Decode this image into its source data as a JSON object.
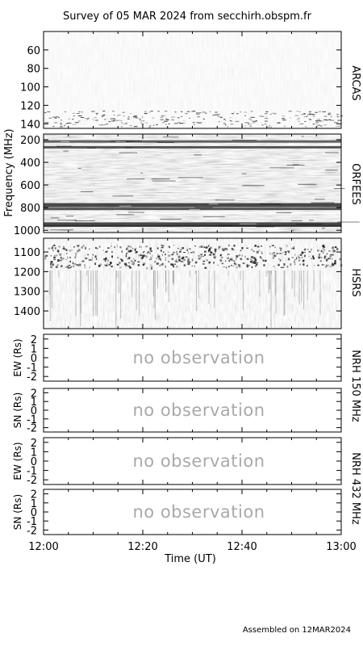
{
  "title": "Survey of 05 MAR 2024 from secchirh.obspm.fr",
  "footer": "Assembled on 12MAR2024",
  "colors": {
    "frame": "#000000",
    "no_observation_text": "#a9a9a9"
  },
  "chart_data": [
    {
      "type": "heatmap",
      "instrument": "ARCAS",
      "ylabel": "",
      "ylim": [
        40,
        145
      ],
      "yticks": [
        "60",
        "80",
        "100",
        "120",
        "140"
      ],
      "ytick_values": [
        60,
        80,
        100,
        120,
        140
      ]
    },
    {
      "type": "heatmap",
      "instrument": "ORFEES",
      "ylabel": "Frequency (MHz)",
      "ylim": [
        150,
        1020
      ],
      "yticks": [
        "200",
        "400",
        "600",
        "800",
        "1000"
      ],
      "ytick_values": [
        200,
        400,
        600,
        800,
        1000
      ]
    },
    {
      "type": "heatmap",
      "instrument": "HSRS",
      "ylabel": "",
      "ylim": [
        1030,
        1490
      ],
      "yticks": [
        "1100",
        "1200",
        "1300",
        "1400"
      ],
      "ytick_values": [
        1100,
        1200,
        1300,
        1400
      ]
    },
    {
      "type": "line",
      "instrument": "NRH 150 MHz",
      "ylabel": "EW (Rs)",
      "ylim": [
        -2.5,
        2.5
      ],
      "yticks": [
        "2",
        "1",
        "0",
        "-1",
        "-2"
      ],
      "ytick_values": [
        2,
        1,
        0,
        -1,
        -2
      ],
      "note": "no observation"
    },
    {
      "type": "line",
      "instrument": "NRH 150 MHz",
      "ylabel": "SN (Rs)",
      "ylim": [
        -2.5,
        2.5
      ],
      "yticks": [
        "2",
        "1",
        "0",
        "-1",
        "-2"
      ],
      "ytick_values": [
        2,
        1,
        0,
        -1,
        -2
      ],
      "note": "no observation"
    },
    {
      "type": "line",
      "instrument": "NRH 432 MHz",
      "ylabel": "EW (Rs)",
      "ylim": [
        -2.5,
        2.5
      ],
      "yticks": [
        "2",
        "1",
        "0",
        "-1",
        "-2"
      ],
      "ytick_values": [
        2,
        1,
        0,
        -1,
        -2
      ],
      "note": "no observation"
    },
    {
      "type": "line",
      "instrument": "NRH 432 MHz",
      "ylabel": "SN (Rs)",
      "ylim": [
        -2.5,
        2.5
      ],
      "yticks": [
        "2",
        "1",
        "0",
        "-1",
        "-2"
      ],
      "ytick_values": [
        2,
        1,
        0,
        -1,
        -2
      ],
      "note": "no observation"
    }
  ],
  "xaxis": {
    "label": "Time (UT)",
    "xlim": [
      "12:00",
      "13:00"
    ],
    "ticks": [
      "12:00",
      "12:20",
      "12:40",
      "13:00"
    ]
  },
  "right_labels": {
    "arcas": "ARCAS",
    "orfees": "ORFEES",
    "hsrs": "HSRS",
    "nrh150": "NRH 150 MHz",
    "nrh432": "NRH 432 MHz"
  }
}
